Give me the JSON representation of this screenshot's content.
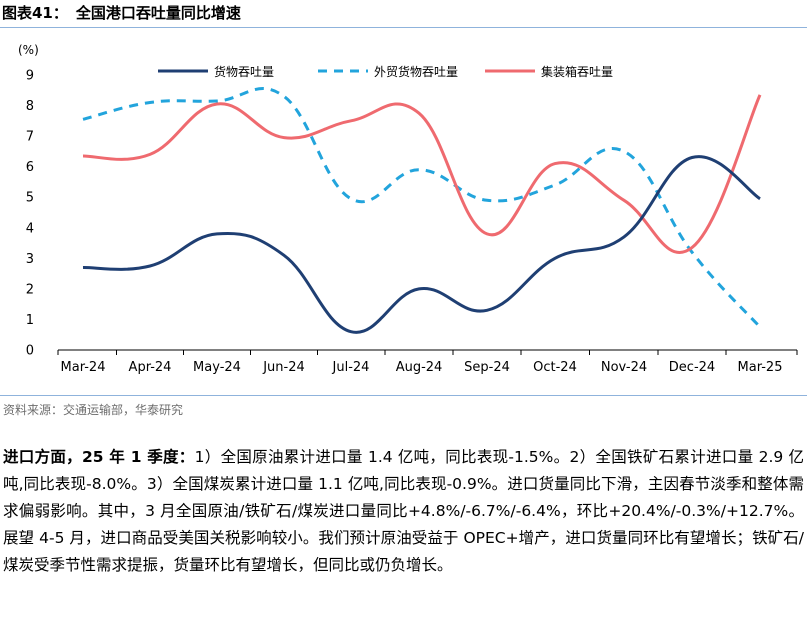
{
  "figure": {
    "label": "图表41：",
    "title": "全国港口吞吐量同比增速"
  },
  "chart_data": {
    "type": "line",
    "unit": "(%)",
    "categories": [
      "Mar-24",
      "Apr-24",
      "May-24",
      "Jun-24",
      "Jul-24",
      "Aug-24",
      "Sep-24",
      "Oct-24",
      "Nov-24",
      "Dec-24",
      "Mar-25"
    ],
    "ylim": [
      0,
      9
    ],
    "yticks": [
      0,
      1,
      2,
      3,
      4,
      5,
      6,
      7,
      8,
      9
    ],
    "legend_position": "top-right",
    "series": [
      {
        "name": "货物吞吐量",
        "color": "#1f3f73",
        "dash": "solid",
        "values": [
          2.7,
          2.75,
          3.8,
          3.1,
          0.6,
          2.0,
          1.3,
          3.0,
          3.7,
          6.3,
          4.95
        ]
      },
      {
        "name": "外贸货物吞吐量",
        "color": "#22a4dc",
        "dash": "dashed",
        "values": [
          7.55,
          8.1,
          8.15,
          8.3,
          4.95,
          5.9,
          4.9,
          5.4,
          6.5,
          3.2,
          0.75
        ]
      },
      {
        "name": "集装箱吞吐量",
        "color": "#ef6a6f",
        "dash": "solid",
        "values": [
          6.35,
          6.4,
          8.05,
          6.95,
          7.5,
          7.75,
          3.8,
          6.1,
          4.9,
          3.35,
          8.35
        ]
      }
    ]
  },
  "source": "资料来源：交通运输部，华泰研究",
  "body": {
    "lead": "进口方面，25 年 1 季度：",
    "text": "1）全国原油累计进口量 1.4 亿吨，同比表现-1.5%。2）全国铁矿石累计进口量 2.9 亿吨,同比表现-8.0%。3）全国煤炭累计进口量 1.1 亿吨,同比表现-0.9%。进口货量同比下滑，主因春节淡季和整体需求偏弱影响。其中，3 月全国原油/铁矿石/煤炭进口量同比+4.8%/-6.7%/-6.4%，环比+20.4%/-0.3%/+12.7%。展望 4-5 月，进口商品受美国关税影响较小。我们预计原油受益于 OPEC+增产，进口货量同环比有望增长；铁矿石/煤炭受季节性需求提振，货量环比有望增长，但同比或仍负增长。"
  }
}
